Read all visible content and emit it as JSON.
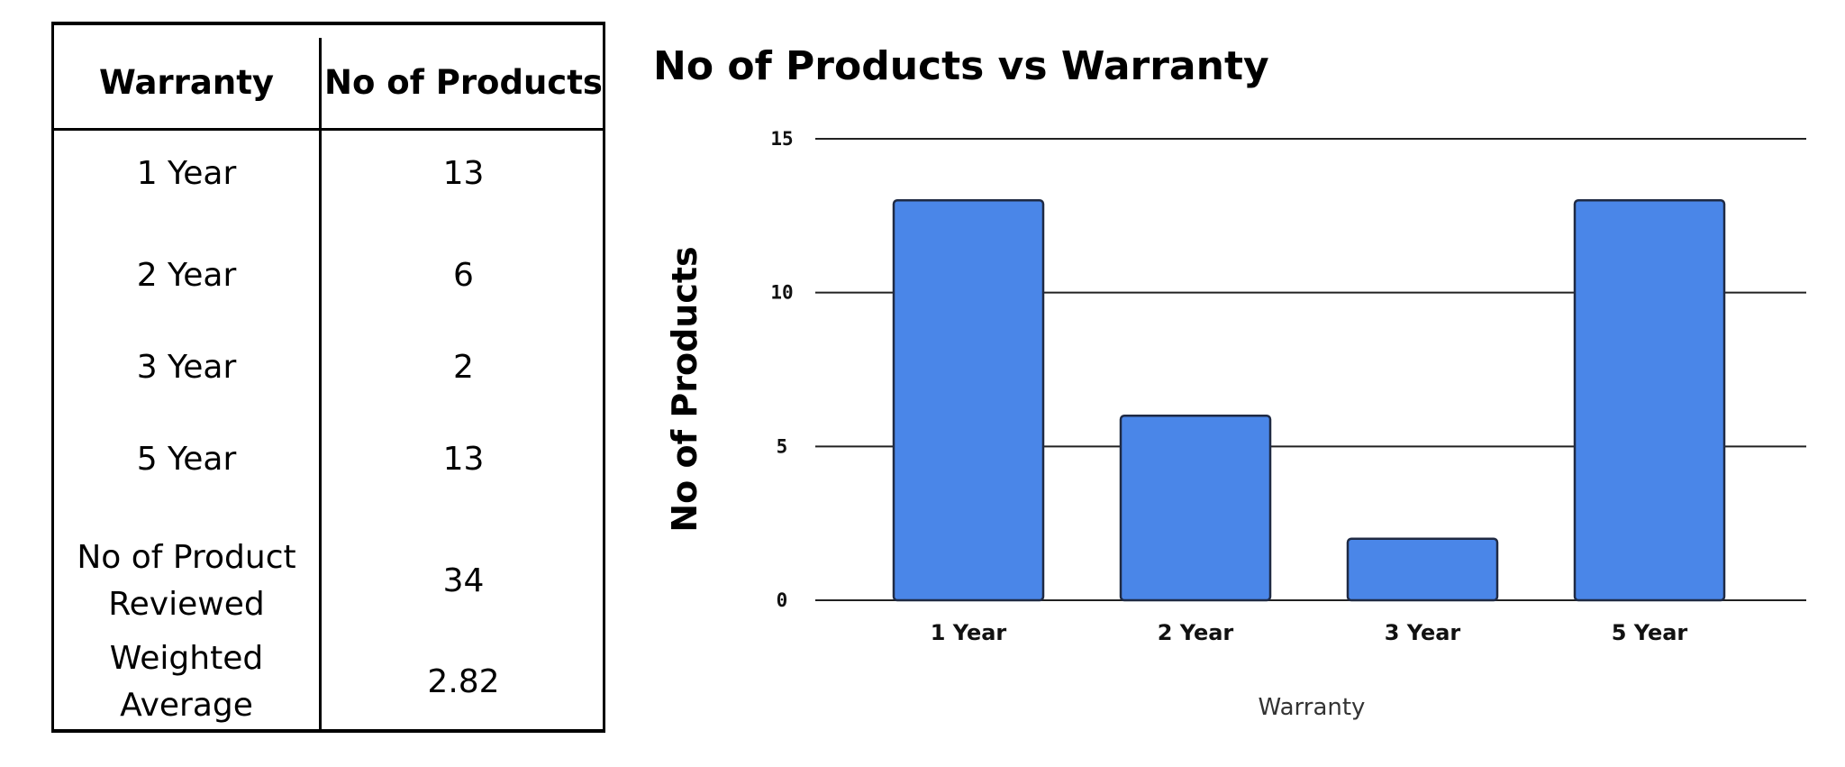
{
  "table": {
    "headers": [
      "Warranty",
      "No of Products"
    ],
    "rows": [
      {
        "label": "1 Year",
        "value": "13"
      },
      {
        "label": "2 Year",
        "value": "6"
      },
      {
        "label": "3 Year",
        "value": "2"
      },
      {
        "label": "5 Year",
        "value": "13"
      }
    ],
    "summary": [
      {
        "label_line1": "No of Product",
        "label_line2": "Reviewed",
        "value": "34"
      },
      {
        "label_line1": "Weighted",
        "label_line2": "Average",
        "value": "2.82"
      }
    ]
  },
  "chart_data": {
    "type": "bar",
    "title": "No of Products vs Warranty",
    "xlabel": "Warranty",
    "ylabel": "No of Products",
    "categories": [
      "1 Year",
      "2 Year",
      "3 Year",
      "5 Year"
    ],
    "values": [
      13,
      6,
      2,
      13
    ],
    "ylim": [
      0,
      15
    ],
    "yticks": [
      0,
      5,
      10,
      15
    ],
    "grid": true,
    "bar_color": "#4a86e8",
    "bar_edge_color": "#1f2a44"
  }
}
